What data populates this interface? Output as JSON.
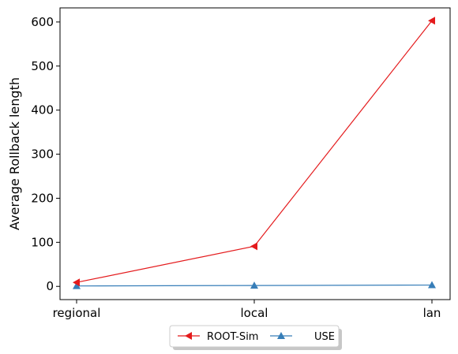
{
  "chart_data": {
    "type": "line",
    "categories": [
      "regional",
      "local",
      "lan"
    ],
    "ylabel": "Average Rollback length",
    "xlabel": "",
    "ylim": [
      -30,
      632
    ],
    "yticks": [
      0,
      100,
      200,
      300,
      400,
      500,
      600
    ],
    "grid": false,
    "legend_position": "bottom-center",
    "series": [
      {
        "name": "ROOT-Sim",
        "values": [
          9,
          91,
          603
        ],
        "color": "#e41a1c",
        "marker": "triangle-left"
      },
      {
        "name": "USE",
        "values": [
          1,
          2,
          3
        ],
        "color": "#377eb8",
        "marker": "triangle-up"
      }
    ]
  }
}
